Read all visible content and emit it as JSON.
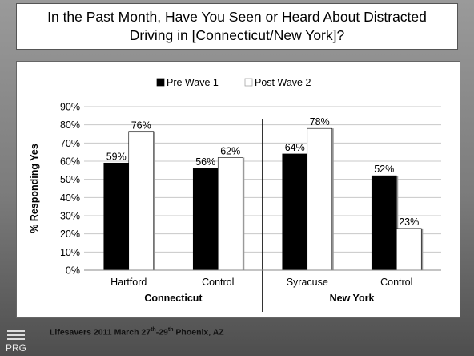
{
  "title": "In the Past Month, Have You Seen or Heard About Distracted Driving in [Connecticut/New York]?",
  "footer": {
    "event_prefix": "Lifesavers 2011 March 27",
    "sup1": "th",
    "middle": "-29",
    "sup2": "th",
    "event_suffix": " Phoenix, AZ",
    "logo_text": "PRG"
  },
  "colors": {
    "pre": "#000000",
    "post": "#ffffff"
  },
  "chart_data": {
    "type": "bar",
    "ylabel": "% Responding Yes",
    "ylim": [
      0,
      90
    ],
    "yticks": [
      "0%",
      "10%",
      "20%",
      "30%",
      "40%",
      "50%",
      "60%",
      "70%",
      "80%",
      "90%"
    ],
    "legend_position": "top",
    "categories": [
      "Hartford",
      "Control",
      "Syracuse",
      "Control"
    ],
    "groups": [
      {
        "label": "Connecticut",
        "categories": [
          0,
          1
        ]
      },
      {
        "label": "New York",
        "categories": [
          2,
          3
        ]
      }
    ],
    "series": [
      {
        "name": "Pre Wave 1",
        "values": [
          59,
          56,
          64,
          52
        ],
        "labels": [
          "59%",
          "56%",
          "64%",
          "52%"
        ]
      },
      {
        "name": "Post Wave 2",
        "values": [
          76,
          62,
          78,
          23
        ],
        "labels": [
          "76%",
          "62%",
          "78%",
          "23%"
        ]
      }
    ],
    "grid": true
  }
}
